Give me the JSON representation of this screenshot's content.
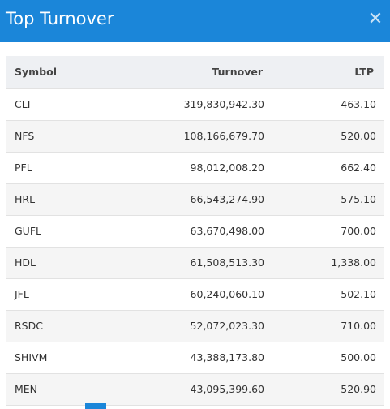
{
  "modal": {
    "title": "Top Turnover",
    "close_icon": "close-icon"
  },
  "table": {
    "headers": {
      "symbol": "Symbol",
      "turnover": "Turnover",
      "ltp": "LTP"
    },
    "rows": [
      {
        "symbol": "CLI",
        "turnover": "319,830,942.30",
        "ltp": "463.10"
      },
      {
        "symbol": "NFS",
        "turnover": "108,166,679.70",
        "ltp": "520.00"
      },
      {
        "symbol": "PFL",
        "turnover": "98,012,008.20",
        "ltp": "662.40"
      },
      {
        "symbol": "HRL",
        "turnover": "66,543,274.90",
        "ltp": "575.10"
      },
      {
        "symbol": "GUFL",
        "turnover": "63,670,498.00",
        "ltp": "700.00"
      },
      {
        "symbol": "HDL",
        "turnover": "61,508,513.30",
        "ltp": "1,338.00"
      },
      {
        "symbol": "JFL",
        "turnover": "60,240,060.10",
        "ltp": "502.10"
      },
      {
        "symbol": "RSDC",
        "turnover": "52,072,023.30",
        "ltp": "710.00"
      },
      {
        "symbol": "SHIVM",
        "turnover": "43,388,173.80",
        "ltp": "500.00"
      },
      {
        "symbol": "MEN",
        "turnover": "43,095,399.60",
        "ltp": "520.90"
      }
    ]
  },
  "colors": {
    "header_bg": "#1b86d9",
    "table_header_bg": "#eef0f3",
    "row_alt_bg": "#f5f5f5"
  }
}
